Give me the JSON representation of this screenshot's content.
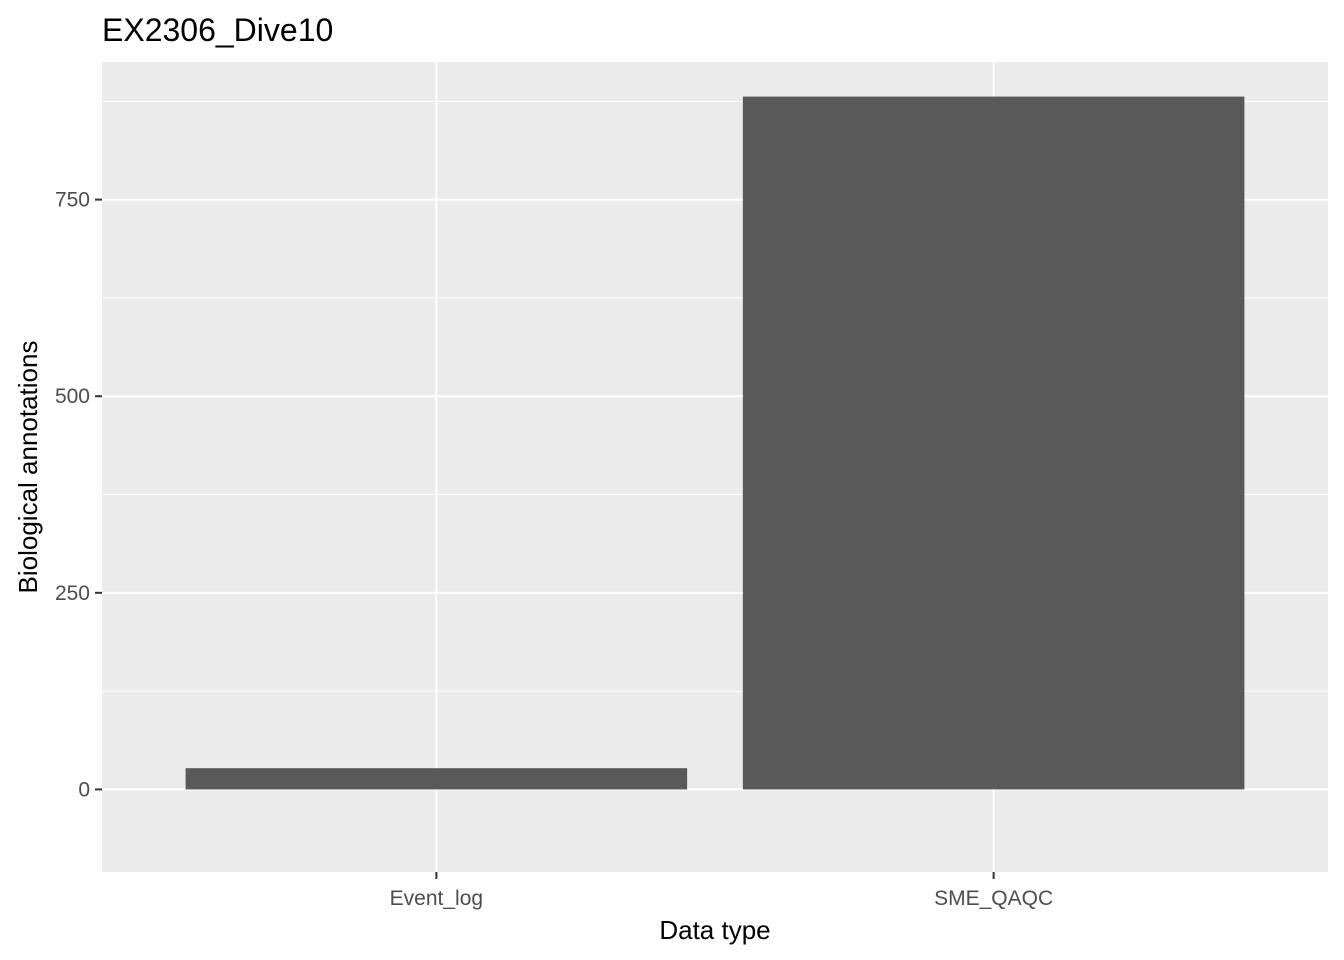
{
  "chart_data": {
    "type": "bar",
    "title": "EX2306_Dive10",
    "xlabel": "Data type",
    "ylabel": "Biological annotations",
    "categories": [
      "Event_log",
      "SME_QAQC"
    ],
    "values": [
      27,
      881
    ],
    "ylim": [
      -105,
      925
    ],
    "yticks": [
      0,
      250,
      500,
      750
    ],
    "yticklabels": [
      "0",
      "250",
      "500",
      "750"
    ],
    "grid": true,
    "legend": "none",
    "colors": {
      "bar": "#595959",
      "panel_background": "#ebebeb",
      "grid": "#ffffff",
      "tick_text": "#4d4d4d",
      "tick_mark": "#333333"
    }
  }
}
